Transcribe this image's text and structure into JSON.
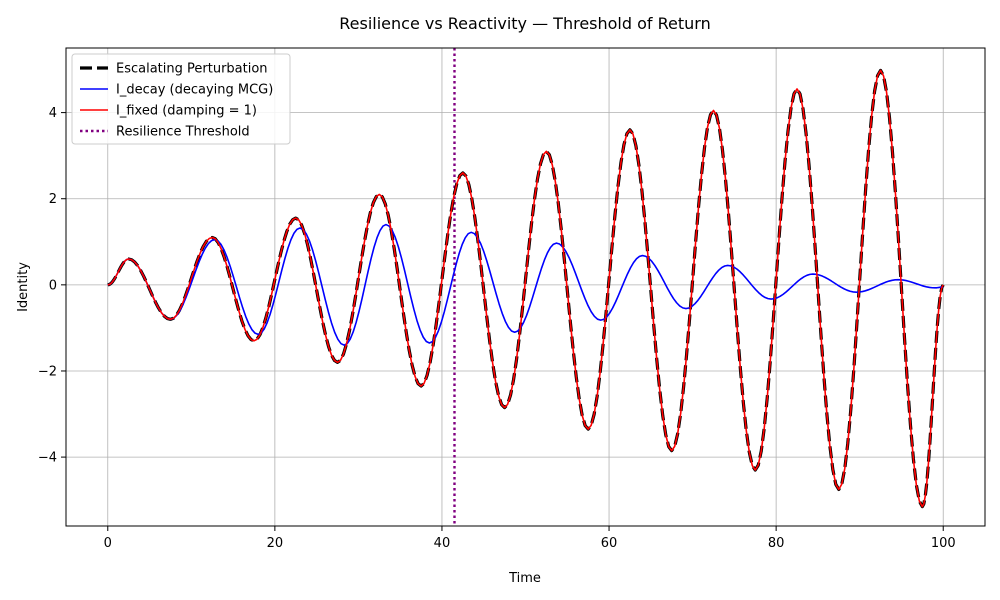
{
  "chart_data": {
    "type": "line",
    "title": "Resilience vs Reactivity — Threshold of Return",
    "xlabel": "Time",
    "ylabel": "Identity",
    "xlim": [
      -5,
      105
    ],
    "ylim": [
      -5.6,
      5.5
    ],
    "xticks": [
      0,
      20,
      40,
      60,
      80,
      100
    ],
    "yticks": [
      -4,
      -2,
      0,
      2,
      4
    ],
    "grid": true,
    "legend_position": "top-left",
    "threshold": {
      "name": "Resilience Threshold",
      "x": 41.5,
      "color": "#800080"
    },
    "series": [
      {
        "name": "Escalating Perturbation",
        "color": "#000000",
        "style": "dashed",
        "x": [
          0,
          2.5,
          7.5,
          12.5,
          17.5,
          22.5,
          27.5,
          32.5,
          37.5,
          42.5,
          47.5,
          52.5,
          57.5,
          62.5,
          67.5,
          72.5,
          77.5,
          82.5,
          87.5,
          92.5,
          97.5,
          100
        ],
        "y": [
          0,
          0.6,
          -0.8,
          1.1,
          -1.3,
          1.55,
          -1.8,
          2.1,
          -2.35,
          2.6,
          -2.85,
          3.1,
          -3.35,
          3.6,
          -3.85,
          4.05,
          -4.3,
          4.55,
          -4.75,
          4.98,
          -5.15,
          0
        ]
      },
      {
        "name": "I_decay (decaying MCG)",
        "color": "#0000ff",
        "style": "solid",
        "x": [
          0,
          2.5,
          7.5,
          12.8,
          18,
          23,
          28.3,
          33.3,
          38.5,
          43.5,
          48.7,
          53.7,
          59,
          64,
          69.2,
          74.2,
          79.4,
          84.4,
          89.6,
          94.6,
          99,
          100
        ],
        "y": [
          0,
          0.6,
          -0.8,
          1.05,
          -1.15,
          1.32,
          -1.4,
          1.4,
          -1.35,
          1.22,
          -1.1,
          0.97,
          -0.82,
          0.68,
          -0.55,
          0.45,
          -0.33,
          0.25,
          -0.17,
          0.12,
          -0.07,
          -0.05
        ]
      },
      {
        "name": "I_fixed (damping = 1)",
        "color": "#ff0000",
        "style": "solid",
        "x": [
          0,
          2.5,
          7.5,
          12.5,
          17.5,
          22.5,
          27.5,
          32.5,
          37.5,
          42.5,
          47.5,
          52.5,
          57.5,
          62.5,
          67.5,
          72.5,
          77.5,
          82.5,
          87.5,
          92.5,
          97.5,
          100
        ],
        "y": [
          0,
          0.6,
          -0.8,
          1.1,
          -1.3,
          1.55,
          -1.8,
          2.1,
          -2.35,
          2.6,
          -2.85,
          3.1,
          -3.35,
          3.6,
          -3.85,
          4.05,
          -4.3,
          4.55,
          -4.75,
          4.98,
          -5.15,
          0
        ]
      }
    ]
  }
}
